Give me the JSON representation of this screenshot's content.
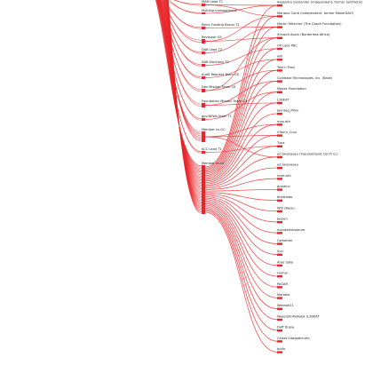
{
  "colors": {
    "link": "#e8262a",
    "bar": "#e8262a",
    "text": "#222222",
    "background": "#ffffff"
  },
  "middle_nodes": [
    "MAM Lead T1",
    "Multisig management",
    "Retro Funding Bonus T1",
    "Reviewer G5",
    "DAB Lead T2",
    "DAB Elections T2",
    "Audit Request Team GS",
    "Dev Mission Team G5",
    "Foundation Mission Team G5",
    "gov.NEWs team T1",
    "Member cs-GC",
    "KCC Lead T1",
    "Member cs-fcf"
  ],
  "right_nodes": [
    "Alejandro Santander (Independent, former Synthetix)",
    "Mariano Conti (Independent, former MakerDAO)",
    "Martin Tellecher (The Graph Foundation)",
    "Ximault Apxin (Borderless Africa)",
    "OP Labs PBC",
    "wih",
    "Test n Prod",
    "Coinbase Technologies, Inc. (Base)",
    "Moose Foundation",
    "L2BEAT",
    "Jaantag_Pillar",
    "max.eth",
    "nTourn_Cruz",
    "Tuna",
    "ed.twuisaaeu (Inquisatreant Corch G.)",
    "ed.twuisaaeu",
    "inset.eth",
    "grastiun",
    "bhettaldo",
    "WIS (Base)",
    "Jaysen",
    "mondaktinsaaure",
    "Gwnahter",
    "Sun",
    "Arao Soko",
    "Humar",
    "PoGAR",
    "Mareelo",
    "Wearsol21",
    "WaseroKnPolkebk (L2BEAT",
    "Daff Drasa",
    "Carlos Intagabre.eth",
    "bulfo"
  ]
}
